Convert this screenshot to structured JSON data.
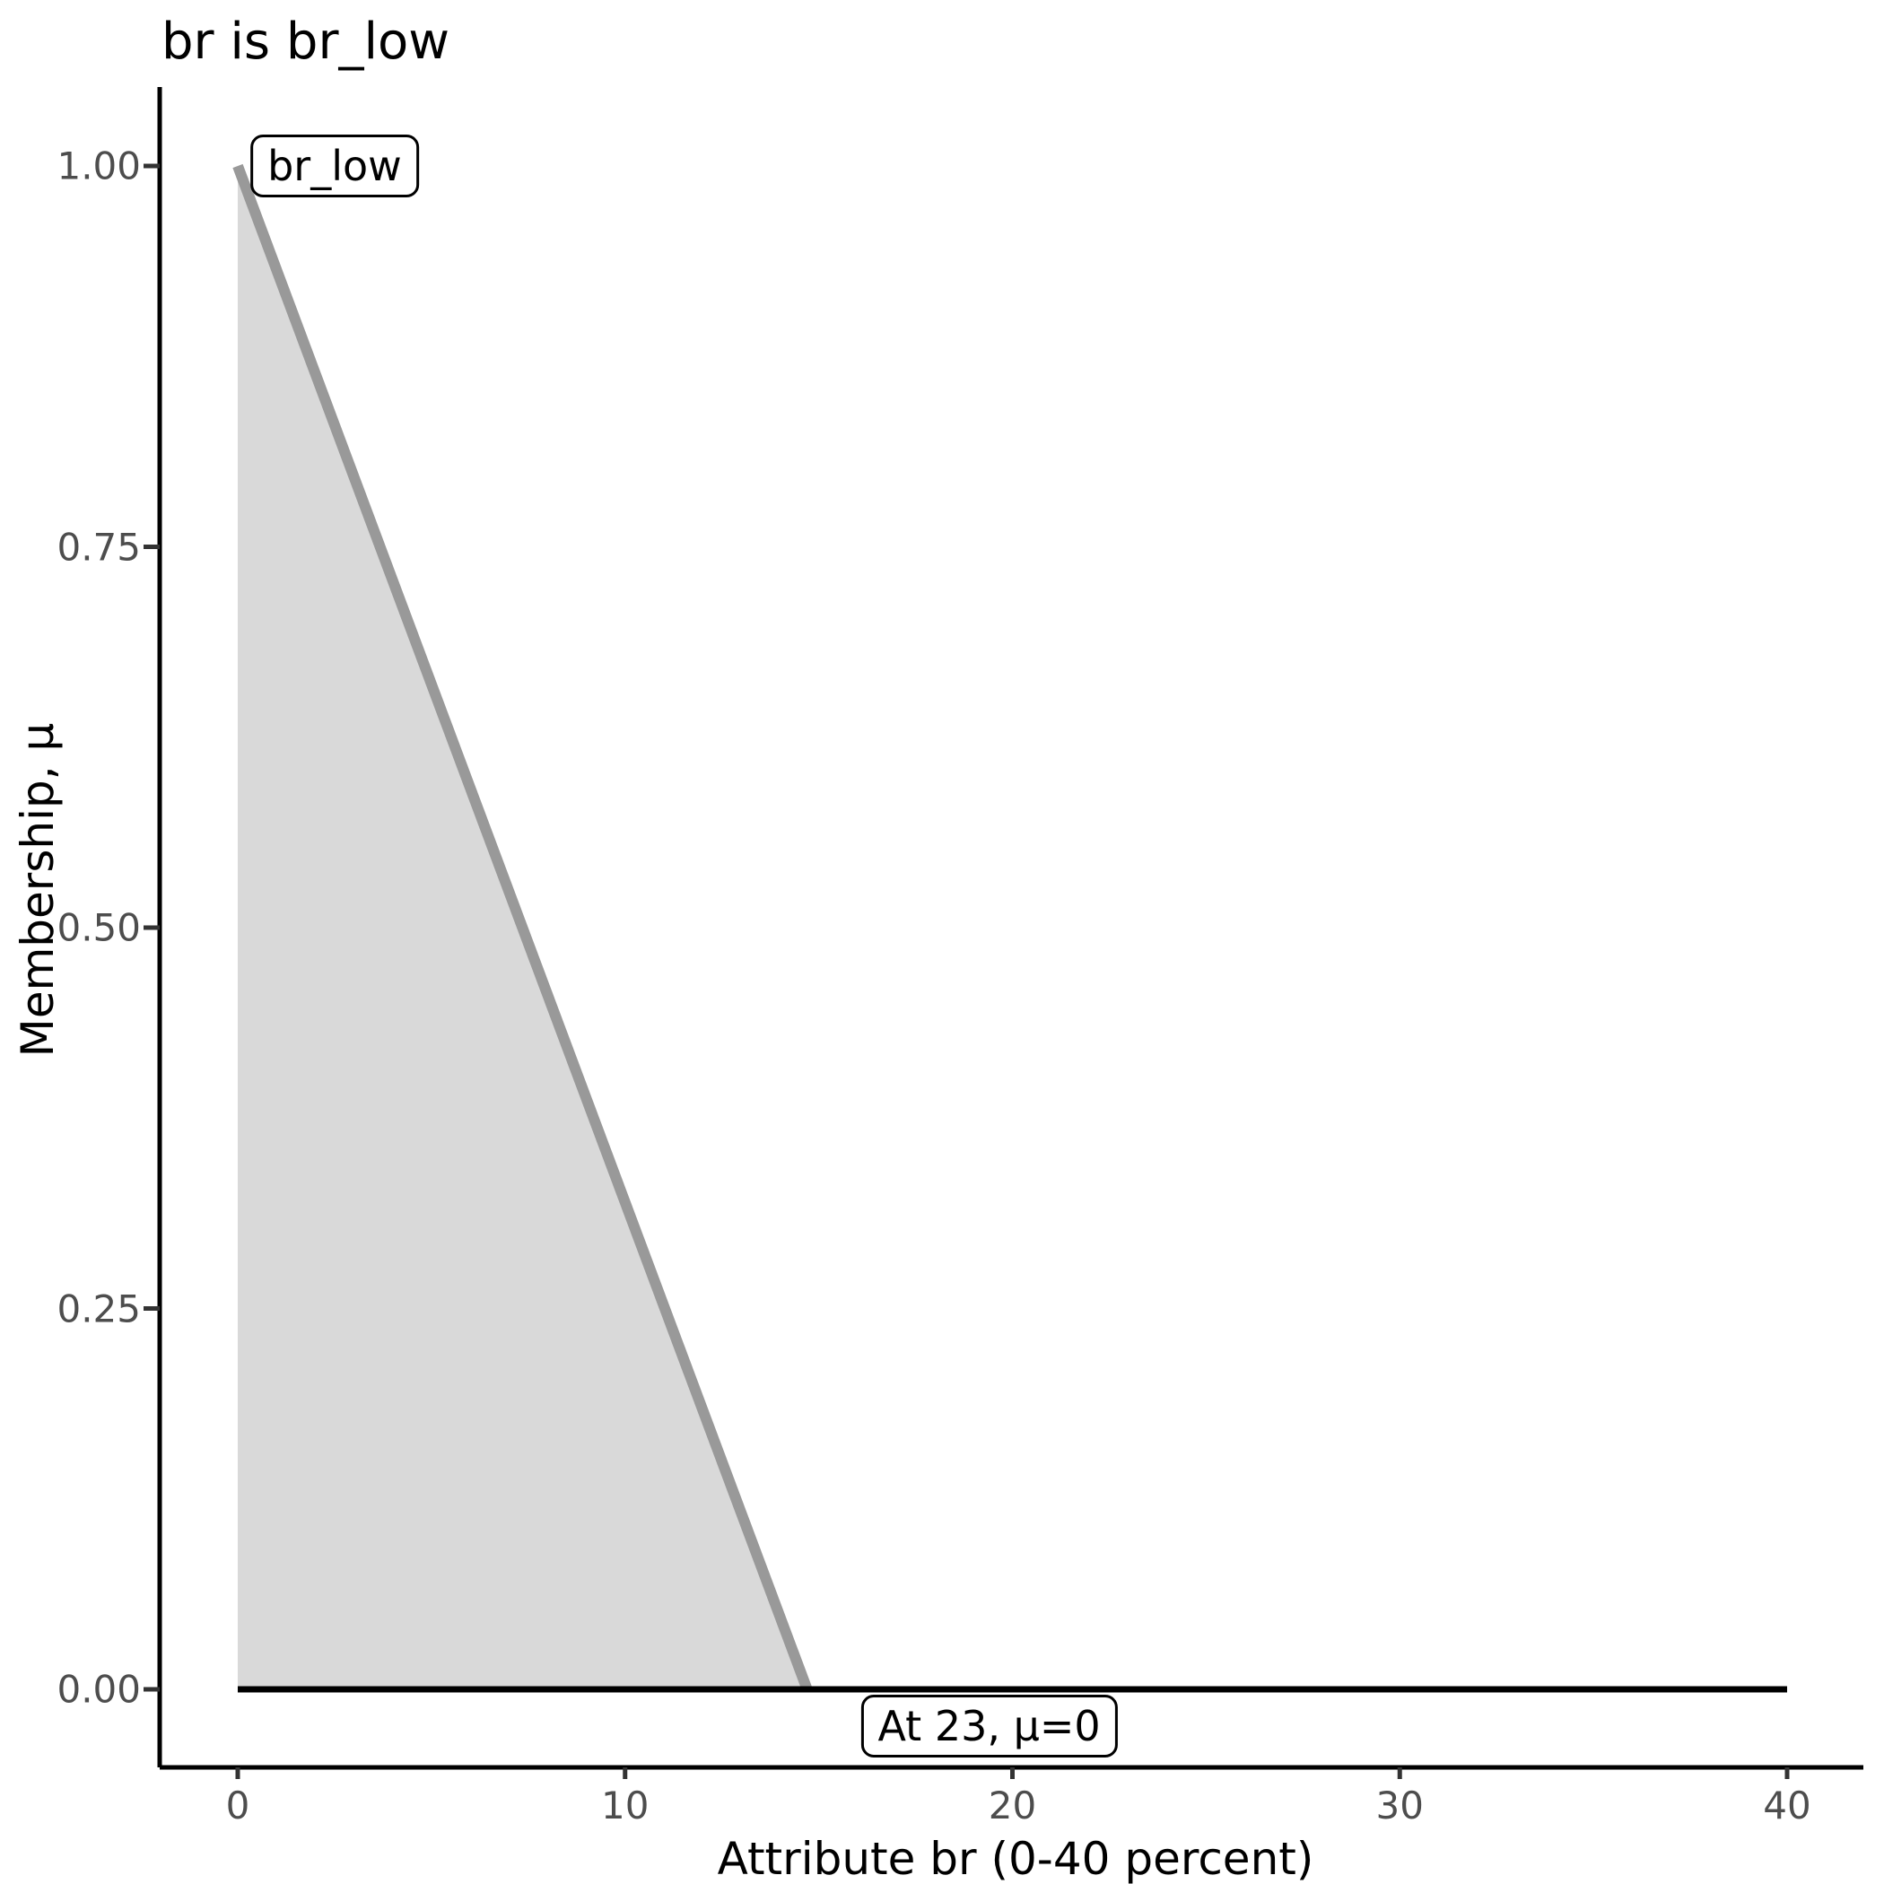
{
  "chart_data": {
    "type": "area",
    "title": "br is br_low",
    "xlabel": "Attribute br (0-40 percent)",
    "ylabel": "Membership, μ",
    "xlim": [
      0,
      40
    ],
    "ylim": [
      0,
      1
    ],
    "xticks": [
      0,
      10,
      20,
      30,
      40
    ],
    "yticks": [
      0,
      0.25,
      0.5,
      0.75,
      1
    ],
    "ytick_labels": [
      "0.00",
      "0.25",
      "0.50",
      "0.75",
      "1.00"
    ],
    "grid": false,
    "legend": false,
    "fill": {
      "name": "br_low membership area",
      "points": [
        [
          0,
          1
        ],
        [
          14.7,
          0
        ],
        [
          0,
          0
        ]
      ],
      "color": "#d9d9d9"
    },
    "series": [
      {
        "name": "br_low membership line",
        "points": [
          [
            0,
            1
          ],
          [
            14.7,
            0
          ]
        ],
        "color": "#999999",
        "width": 12
      },
      {
        "name": "zero membership baseline",
        "points": [
          [
            0,
            0
          ],
          [
            40,
            0
          ]
        ],
        "color": "#000000",
        "width": 7
      }
    ],
    "annotations": [
      {
        "text": "br_low",
        "x": 2.5,
        "y": 1.0
      },
      {
        "text": "At 23, μ=0",
        "x": 19.4,
        "y": -0.024
      }
    ]
  },
  "colors": {
    "background": "#ffffff",
    "area_fill": "#d9d9d9",
    "membership_line": "#999999",
    "axis": "#000000",
    "tick_mark": "#333333",
    "tick_label": "#4d4d4d"
  }
}
